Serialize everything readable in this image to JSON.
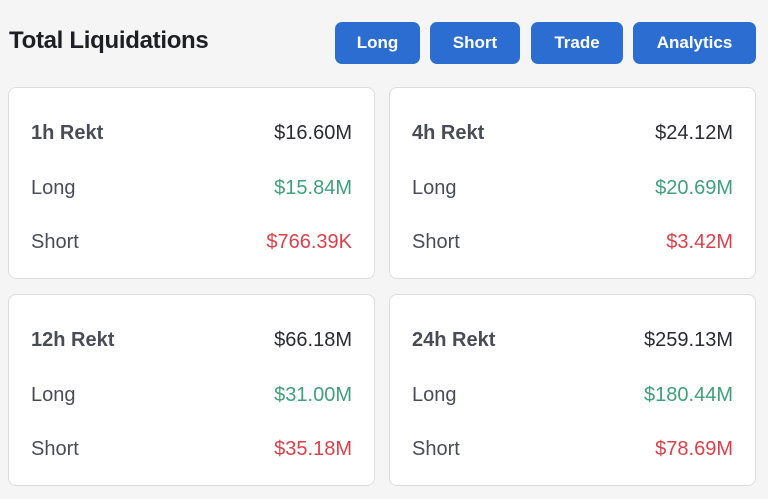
{
  "header": {
    "title": "Total Liquidations",
    "buttons": {
      "long": "Long",
      "short": "Short",
      "trade": "Trade",
      "analytics": "Analytics"
    }
  },
  "colors": {
    "accent": "#2c6dd2",
    "long": "#3fa07a",
    "short": "#de3f4a"
  },
  "cards": [
    {
      "title": "1h Rekt",
      "total": "$16.60M",
      "long_label": "Long",
      "long_value": "$15.84M",
      "short_label": "Short",
      "short_value": "$766.39K"
    },
    {
      "title": "4h Rekt",
      "total": "$24.12M",
      "long_label": "Long",
      "long_value": "$20.69M",
      "short_label": "Short",
      "short_value": "$3.42M"
    },
    {
      "title": "12h Rekt",
      "total": "$66.18M",
      "long_label": "Long",
      "long_value": "$31.00M",
      "short_label": "Short",
      "short_value": "$35.18M"
    },
    {
      "title": "24h Rekt",
      "total": "$259.13M",
      "long_label": "Long",
      "long_value": "$180.44M",
      "short_label": "Short",
      "short_value": "$78.69M"
    }
  ]
}
